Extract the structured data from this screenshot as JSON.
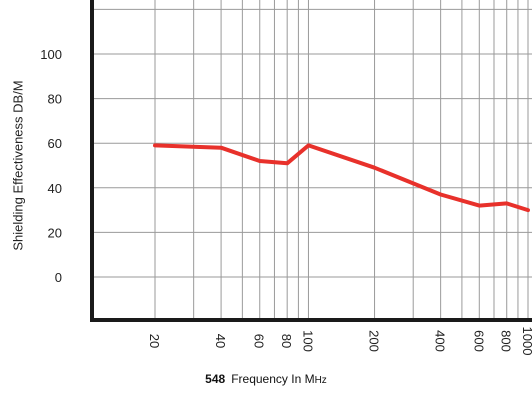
{
  "chart_data": {
    "type": "line",
    "figure_number": "548",
    "xlabel_main": "Frequency In M",
    "xlabel_unit_small": "Hz",
    "ylabel": "Shielding Effectiveness DB/M",
    "x_scale": "log",
    "x_ticks": [
      20,
      40,
      60,
      80,
      100,
      200,
      400,
      600,
      800,
      1000
    ],
    "x_tick_labels": [
      "20",
      "40",
      "60",
      "80",
      "100",
      "200",
      "400",
      "600",
      "800",
      "1000"
    ],
    "y_ticks": [
      0,
      20,
      40,
      60,
      80,
      100
    ],
    "y_tick_labels": [
      "0",
      "20",
      "40",
      "60",
      "80",
      "100"
    ],
    "ylim": [
      -20,
      120
    ],
    "grid": true,
    "series": [
      {
        "color": "#e8312b",
        "x": [
          20,
          40,
          60,
          80,
          100,
          200,
          400,
          600,
          800,
          1000
        ],
        "y": [
          59,
          58,
          52,
          51,
          59,
          49,
          37,
          32,
          33,
          30
        ]
      }
    ]
  },
  "colors": {
    "axis": "#1a1a1a",
    "grid": "#9a9a9a",
    "text": "#222222"
  }
}
